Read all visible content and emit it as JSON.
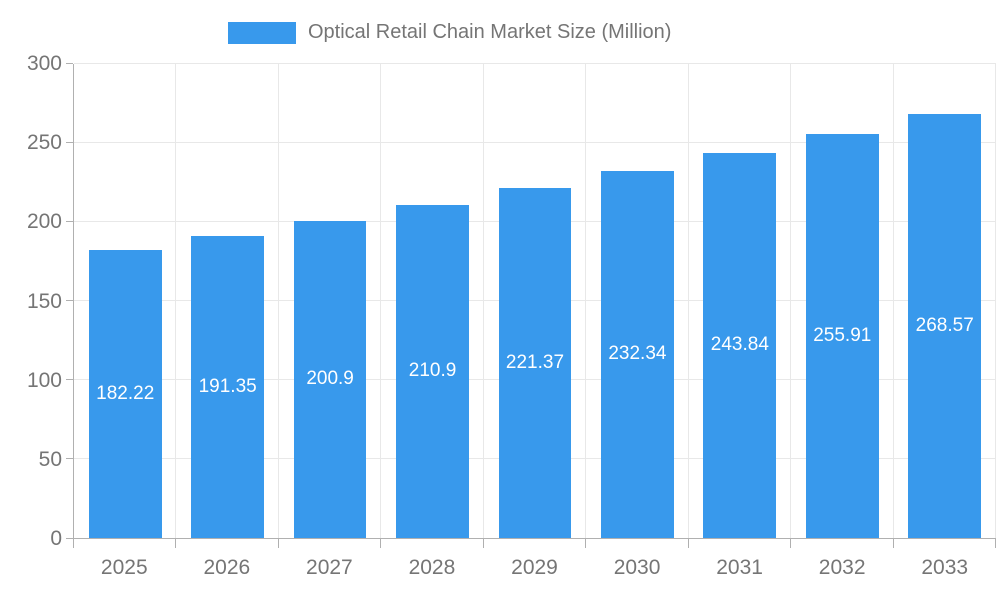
{
  "legend": {
    "label": "Optical Retail Chain Market Size (Million)"
  },
  "colors": {
    "bar": "#3899EC",
    "axis_line": "#B0B0B0",
    "grid_line": "#E8E8E8",
    "axis_text": "#757575",
    "value_label_text": "#FFFFFF",
    "background": "#FFFFFF"
  },
  "chart_data": {
    "type": "bar",
    "title": "Optical Retail Chain Market Size (Million)",
    "categories": [
      "2025",
      "2026",
      "2027",
      "2028",
      "2029",
      "2030",
      "2031",
      "2032",
      "2033"
    ],
    "values": [
      182.22,
      191.35,
      200.9,
      210.9,
      221.37,
      232.34,
      243.84,
      255.91,
      268.57
    ],
    "value_labels": [
      "182.22",
      "191.35",
      "200.9",
      "210.9",
      "221.37",
      "232.34",
      "243.84",
      "255.91",
      "268.57"
    ],
    "xlabel": "",
    "ylabel": "",
    "ylim": [
      0,
      300
    ],
    "yticks": [
      0,
      50,
      100,
      150,
      200,
      250,
      300
    ],
    "grid": true,
    "legend_position": "top-center",
    "bar_label_position": "inside-middle"
  }
}
